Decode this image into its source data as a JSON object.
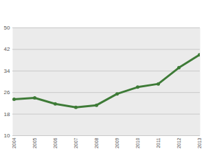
{
  "chart_data": {
    "type": "line",
    "categories": [
      "2004",
      "2005",
      "2006",
      "2007",
      "2008",
      "2009",
      "2010",
      "2011",
      "2012",
      "2013"
    ],
    "values": [
      23.5,
      24,
      21.8,
      20.5,
      21.3,
      25.5,
      28,
      29.2,
      35.2,
      40
    ],
    "color": "#3e7b37",
    "marker": "circle",
    "ylim": [
      10,
      50
    ],
    "yticks": [
      10,
      18,
      26,
      34,
      42,
      50
    ],
    "grid": true
  }
}
